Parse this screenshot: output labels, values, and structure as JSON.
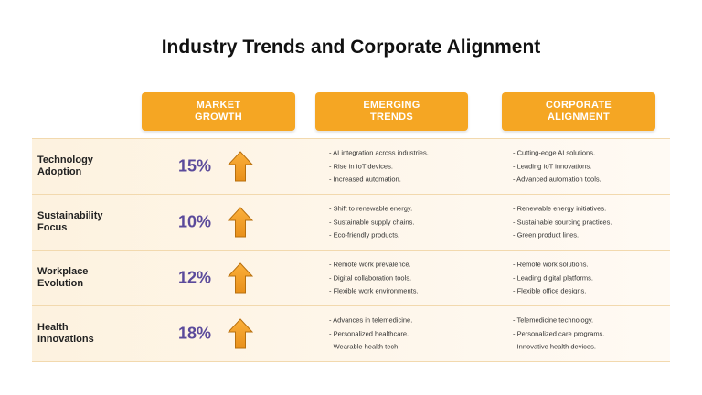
{
  "title": "Industry Trends and Corporate Alignment",
  "columns": {
    "market_growth": "MARKET\nGROWTH",
    "emerging_trends": "EMERGING\nTRENDS",
    "corporate_alignment": "CORPORATE\nALIGNMENT"
  },
  "colors": {
    "header_bg": "#f5a623",
    "percent_text": "#5b4a9b",
    "arrow_fill": "#f5a623"
  },
  "rows": [
    {
      "label": "Technology\nAdoption",
      "growth": "15%",
      "trend_icon": "arrow-up-icon",
      "trends": [
        "AI integration across industries.",
        "Rise in IoT devices.",
        "Increased automation."
      ],
      "alignment": [
        "Cutting-edge AI solutions.",
        "Leading IoT innovations.",
        "Advanced automation tools."
      ]
    },
    {
      "label": "Sustainability\nFocus",
      "growth": "10%",
      "trend_icon": "arrow-up-icon",
      "trends": [
        "Shift to renewable energy.",
        "Sustainable supply chains.",
        "Eco-friendly products."
      ],
      "alignment": [
        "Renewable energy initiatives.",
        "Sustainable sourcing practices.",
        "Green product lines."
      ]
    },
    {
      "label": "Workplace\nEvolution",
      "growth": "12%",
      "trend_icon": "arrow-up-icon",
      "trends": [
        "Remote work prevalence.",
        "Digital collaboration tools.",
        "Flexible work environments."
      ],
      "alignment": [
        "Remote work solutions.",
        "Leading digital platforms.",
        "Flexible office designs."
      ]
    },
    {
      "label": "Health\nInnovations",
      "growth": "18%",
      "trend_icon": "arrow-up-icon",
      "trends": [
        "Advances in telemedicine.",
        "Personalized healthcare.",
        "Wearable health tech."
      ],
      "alignment": [
        "Telemedicine technology.",
        "Personalized care programs.",
        "Innovative health devices."
      ]
    }
  ]
}
